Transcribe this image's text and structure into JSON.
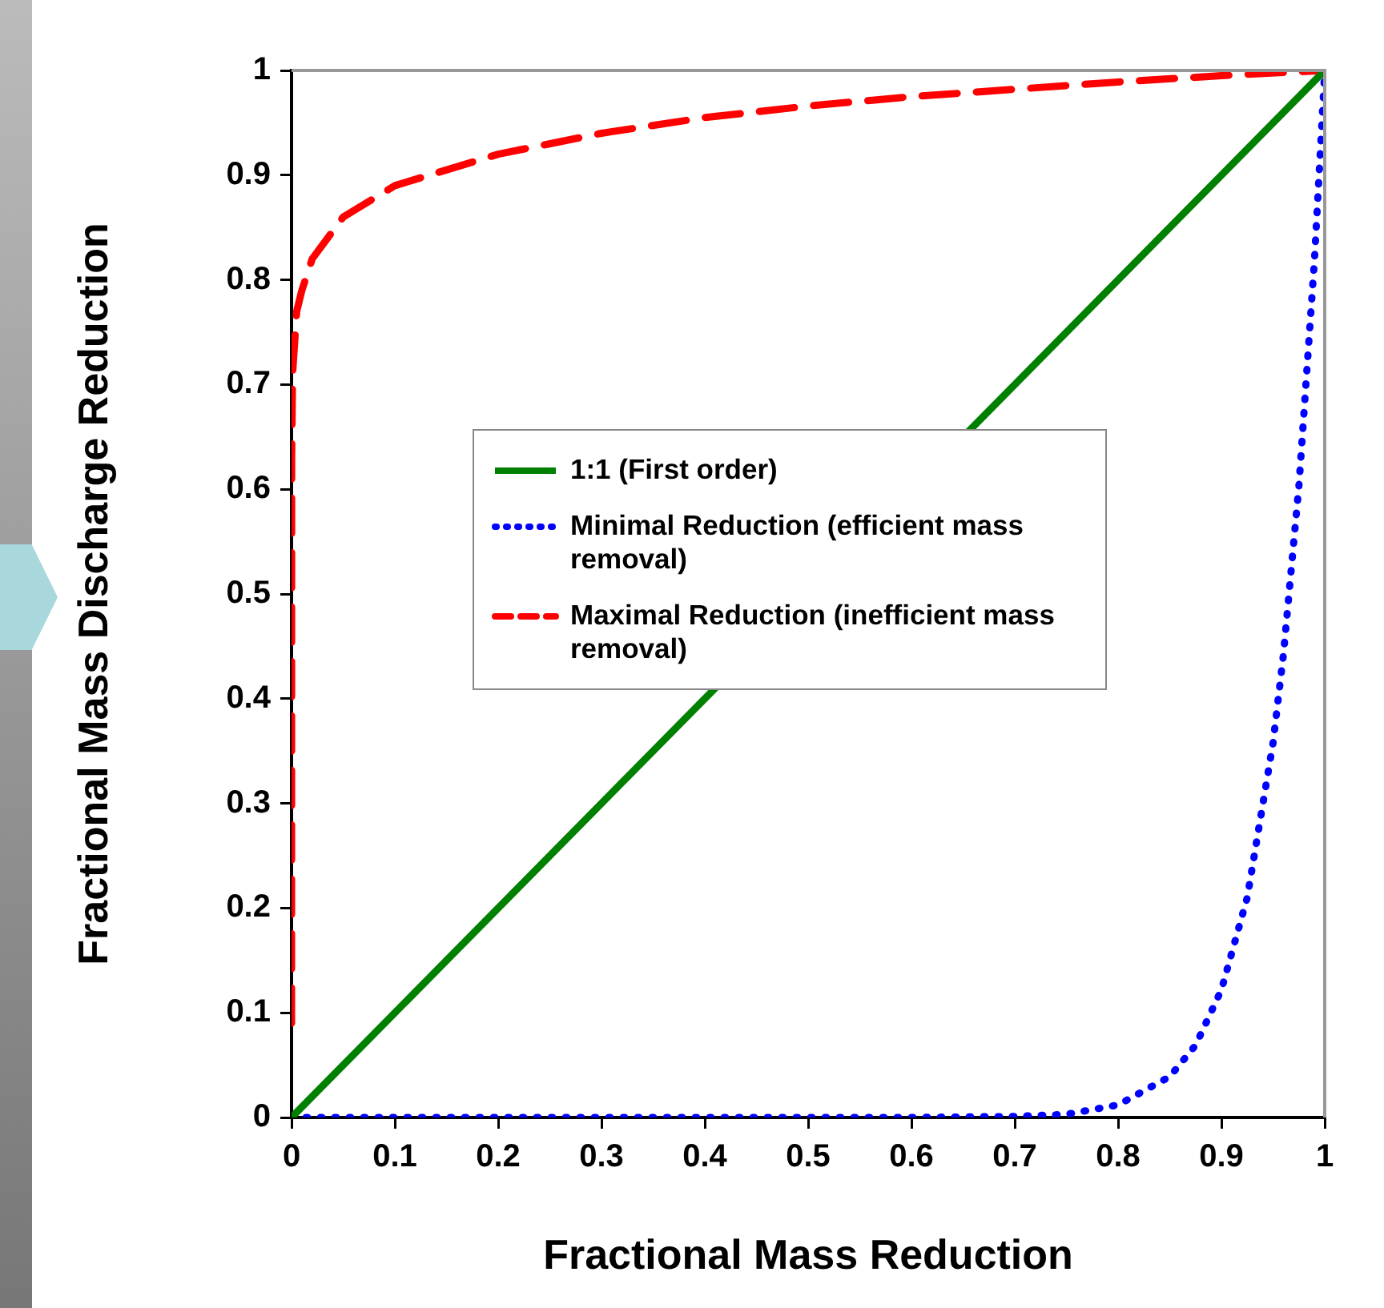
{
  "chart_data": {
    "type": "line",
    "xlabel": "Fractional Mass Reduction",
    "ylabel": "Fractional Mass Discharge Reduction",
    "xlim": [
      0,
      1
    ],
    "ylim": [
      0,
      1
    ],
    "xticks": [
      0,
      0.1,
      0.2,
      0.3,
      0.4,
      0.5,
      0.6,
      0.7,
      0.8,
      0.9,
      1
    ],
    "yticks": [
      0,
      0.1,
      0.2,
      0.3,
      0.4,
      0.5,
      0.6,
      0.7,
      0.8,
      0.9,
      1
    ],
    "grid": false,
    "legend": "center",
    "marker": "none",
    "series": [
      {
        "name": "1:1 (First order)",
        "color": "#008000",
        "line_style": "solid",
        "x": [
          0,
          1
        ],
        "values": [
          0,
          1
        ]
      },
      {
        "name": "Minimal Reduction (efficient mass removal)",
        "color": "#0000ff",
        "line_style": "dotted",
        "x": [
          0,
          0.1,
          0.2,
          0.3,
          0.4,
          0.5,
          0.6,
          0.7,
          0.75,
          0.8,
          0.85,
          0.875,
          0.9,
          0.925,
          0.95,
          0.96,
          0.975,
          0.99,
          1
        ],
        "values": [
          0,
          0,
          0,
          0,
          0,
          0,
          0,
          0.001,
          0.003,
          0.012,
          0.039,
          0.069,
          0.122,
          0.21,
          0.358,
          0.442,
          0.603,
          0.818,
          1
        ]
      },
      {
        "name": "Maximal Reduction (inefficient mass removal)",
        "color": "#ff0000",
        "line_style": "dashed",
        "x": [
          0,
          0.0001,
          0.001,
          0.005,
          0.01,
          0.02,
          0.05,
          0.1,
          0.2,
          0.3,
          0.4,
          0.5,
          0.6,
          0.7,
          0.8,
          0.9,
          1
        ],
        "values": [
          0.09,
          0.63,
          0.71,
          0.77,
          0.79,
          0.82,
          0.86,
          0.89,
          0.92,
          0.94,
          0.955,
          0.966,
          0.975,
          0.982,
          0.989,
          0.995,
          1
        ]
      }
    ]
  }
}
